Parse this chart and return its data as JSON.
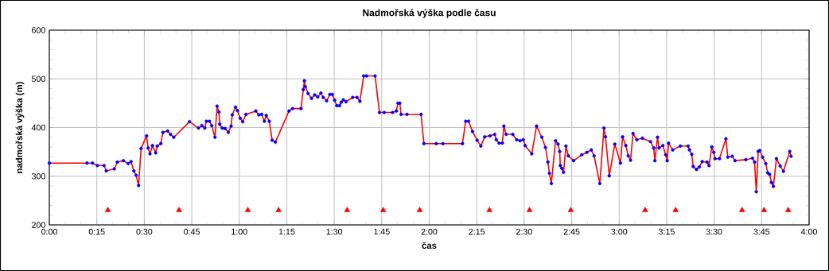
{
  "chart_data": {
    "type": "line",
    "title": "Nadmořská výška podle času",
    "xlabel": "čas",
    "ylabel": "nadmořská výška (m)",
    "xlim": [
      0,
      4
    ],
    "ylim": [
      200,
      600
    ],
    "grid": true,
    "xticks": [
      {
        "value": 0,
        "label": "0:00"
      },
      {
        "value": 0.25,
        "label": "0:15"
      },
      {
        "value": 0.5,
        "label": "0:30"
      },
      {
        "value": 0.75,
        "label": "0:45"
      },
      {
        "value": 1,
        "label": "1:00"
      },
      {
        "value": 1.25,
        "label": "1:15"
      },
      {
        "value": 1.5,
        "label": "1:30"
      },
      {
        "value": 1.75,
        "label": "1:45"
      },
      {
        "value": 2,
        "label": "2:00"
      },
      {
        "value": 2.25,
        "label": "2:15"
      },
      {
        "value": 2.5,
        "label": "2:30"
      },
      {
        "value": 2.75,
        "label": "2:45"
      },
      {
        "value": 3,
        "label": "3:00"
      },
      {
        "value": 3.25,
        "label": "3:15"
      },
      {
        "value": 3.5,
        "label": "3:30"
      },
      {
        "value": 3.75,
        "label": "3:45"
      },
      {
        "value": 4,
        "label": "4:00"
      }
    ],
    "yticks": [
      200,
      300,
      400,
      500,
      600
    ],
    "x": [
      0,
      0.198,
      0.227,
      0.253,
      0.288,
      0.3,
      0.342,
      0.358,
      0.39,
      0.415,
      0.43,
      0.445,
      0.457,
      0.47,
      0.483,
      0.512,
      0.52,
      0.53,
      0.543,
      0.56,
      0.568,
      0.587,
      0.598,
      0.623,
      0.638,
      0.655,
      0.738,
      0.785,
      0.803,
      0.818,
      0.827,
      0.843,
      0.855,
      0.872,
      0.883,
      0.893,
      0.897,
      0.91,
      0.925,
      0.942,
      0.957,
      0.963,
      0.98,
      0.99,
      1.005,
      1.018,
      1.035,
      1.087,
      1.103,
      1.118,
      1.132,
      1.142,
      1.158,
      1.173,
      1.19,
      1.262,
      1.28,
      1.325,
      1.337,
      1.343,
      1.348,
      1.362,
      1.38,
      1.397,
      1.413,
      1.43,
      1.442,
      1.46,
      1.477,
      1.49,
      1.502,
      1.513,
      1.528,
      1.537,
      1.548,
      1.562,
      1.597,
      1.62,
      1.635,
      1.655,
      1.67,
      1.715,
      1.738,
      1.763,
      1.807,
      1.827,
      1.835,
      1.845,
      1.852,
      1.883,
      1.957,
      1.972,
      2.037,
      2.072,
      2.175,
      2.192,
      2.207,
      2.228,
      2.252,
      2.272,
      2.292,
      2.32,
      2.345,
      2.353,
      2.368,
      2.385,
      2.393,
      2.405,
      2.44,
      2.46,
      2.478,
      2.495,
      2.505,
      2.54,
      2.565,
      2.593,
      2.612,
      2.625,
      2.633,
      2.643,
      2.665,
      2.678,
      2.687,
      2.69,
      2.698,
      2.707,
      2.72,
      2.732,
      2.76,
      2.803,
      2.83,
      2.853,
      2.868,
      2.898,
      2.92,
      2.928,
      2.948,
      2.977,
      3.007,
      3.018,
      3.035,
      3.048,
      3.06,
      3.073,
      3.093,
      3.122,
      3.165,
      3.182,
      3.188,
      3.202,
      3.21,
      3.23,
      3.245,
      3.253,
      3.26,
      3.282,
      3.322,
      3.363,
      3.37,
      3.382,
      3.39,
      3.407,
      3.422,
      3.437,
      3.463,
      3.473,
      3.488,
      3.498,
      3.505,
      3.528,
      3.562,
      3.572,
      3.595,
      3.61,
      3.667,
      3.702,
      3.713,
      3.722,
      3.732,
      3.74,
      3.755,
      3.772,
      3.782,
      3.792,
      3.802,
      3.812,
      3.828,
      3.848,
      3.865,
      3.898,
      3.905
    ],
    "series": [
      {
        "color": "#ff0000",
        "values": [
          327,
          327,
          327,
          322,
          322,
          311,
          315,
          329,
          332,
          326,
          330,
          311,
          302,
          281,
          357,
          383,
          358,
          346,
          363,
          348,
          362,
          367,
          390,
          393,
          386,
          380,
          412,
          399,
          404,
          399,
          413,
          413,
          404,
          380,
          444,
          432,
          407,
          399,
          398,
          390,
          403,
          426,
          442,
          435,
          419,
          412,
          427,
          434,
          426,
          427,
          413,
          425,
          413,
          374,
          370,
          434,
          439,
          439,
          478,
          496,
          484,
          470,
          460,
          467,
          463,
          471,
          462,
          455,
          468,
          468,
          456,
          445,
          445,
          452,
          457,
          453,
          462,
          462,
          454,
          506,
          506,
          506,
          431,
          431,
          431,
          434,
          450,
          450,
          427,
          427,
          427,
          367,
          367,
          367,
          367,
          413,
          413,
          392,
          374,
          362,
          381,
          383,
          386,
          375,
          368,
          368,
          403,
          386,
          386,
          375,
          373,
          375,
          363,
          346,
          403,
          380,
          359,
          329,
          306,
          285,
          373,
          366,
          351,
          322,
          316,
          308,
          362,
          342,
          332,
          344,
          349,
          354,
          342,
          285,
          399,
          381,
          301,
          366,
          327,
          381,
          363,
          342,
          333,
          388,
          375,
          378,
          371,
          358,
          332,
          380,
          358,
          363,
          344,
          332,
          368,
          354,
          362,
          362,
          354,
          345,
          320,
          314,
          319,
          330,
          329,
          322,
          360,
          349,
          336,
          336,
          377,
          339,
          341,
          332,
          334,
          337,
          329,
          268,
          351,
          353,
          339,
          326,
          307,
          304,
          287,
          279,
          336,
          321,
          310,
          351,
          341
        ]
      },
      {
        "type": "scatter",
        "color": "#0000ff",
        "marker": "circle",
        "values": [
          327,
          327,
          327,
          322,
          322,
          311,
          315,
          329,
          332,
          326,
          330,
          311,
          302,
          281,
          357,
          383,
          358,
          346,
          363,
          348,
          362,
          367,
          390,
          393,
          386,
          380,
          412,
          399,
          404,
          399,
          413,
          413,
          404,
          380,
          444,
          432,
          407,
          399,
          398,
          390,
          403,
          426,
          442,
          435,
          419,
          412,
          427,
          434,
          426,
          427,
          413,
          425,
          413,
          374,
          370,
          434,
          439,
          439,
          478,
          496,
          484,
          470,
          460,
          467,
          463,
          471,
          462,
          455,
          468,
          468,
          456,
          445,
          445,
          452,
          457,
          453,
          462,
          462,
          454,
          506,
          506,
          506,
          431,
          431,
          431,
          434,
          450,
          450,
          427,
          427,
          427,
          367,
          367,
          367,
          367,
          413,
          413,
          392,
          374,
          362,
          381,
          383,
          386,
          375,
          368,
          368,
          403,
          386,
          386,
          375,
          373,
          375,
          363,
          346,
          403,
          380,
          359,
          329,
          306,
          285,
          373,
          366,
          351,
          322,
          316,
          308,
          362,
          342,
          332,
          344,
          349,
          354,
          342,
          285,
          399,
          381,
          301,
          366,
          327,
          381,
          363,
          342,
          333,
          388,
          375,
          378,
          371,
          358,
          332,
          380,
          358,
          363,
          344,
          332,
          368,
          354,
          362,
          362,
          354,
          345,
          320,
          314,
          319,
          330,
          329,
          322,
          360,
          349,
          336,
          336,
          377,
          339,
          341,
          332,
          334,
          337,
          329,
          268,
          351,
          353,
          339,
          326,
          307,
          304,
          287,
          279,
          336,
          321,
          310,
          351,
          341
        ]
      },
      {
        "type": "scatter",
        "color": "#ff0000",
        "marker": "triangle",
        "x": [
          0.308,
          0.683,
          1.045,
          1.207,
          1.568,
          1.758,
          1.95,
          2.317,
          2.528,
          2.745,
          3.137,
          3.297,
          3.647,
          3.763,
          3.89
        ],
        "values": [
          230,
          230,
          230,
          230,
          230,
          230,
          230,
          230,
          230,
          230,
          230,
          230,
          230,
          230,
          230
        ]
      }
    ]
  }
}
